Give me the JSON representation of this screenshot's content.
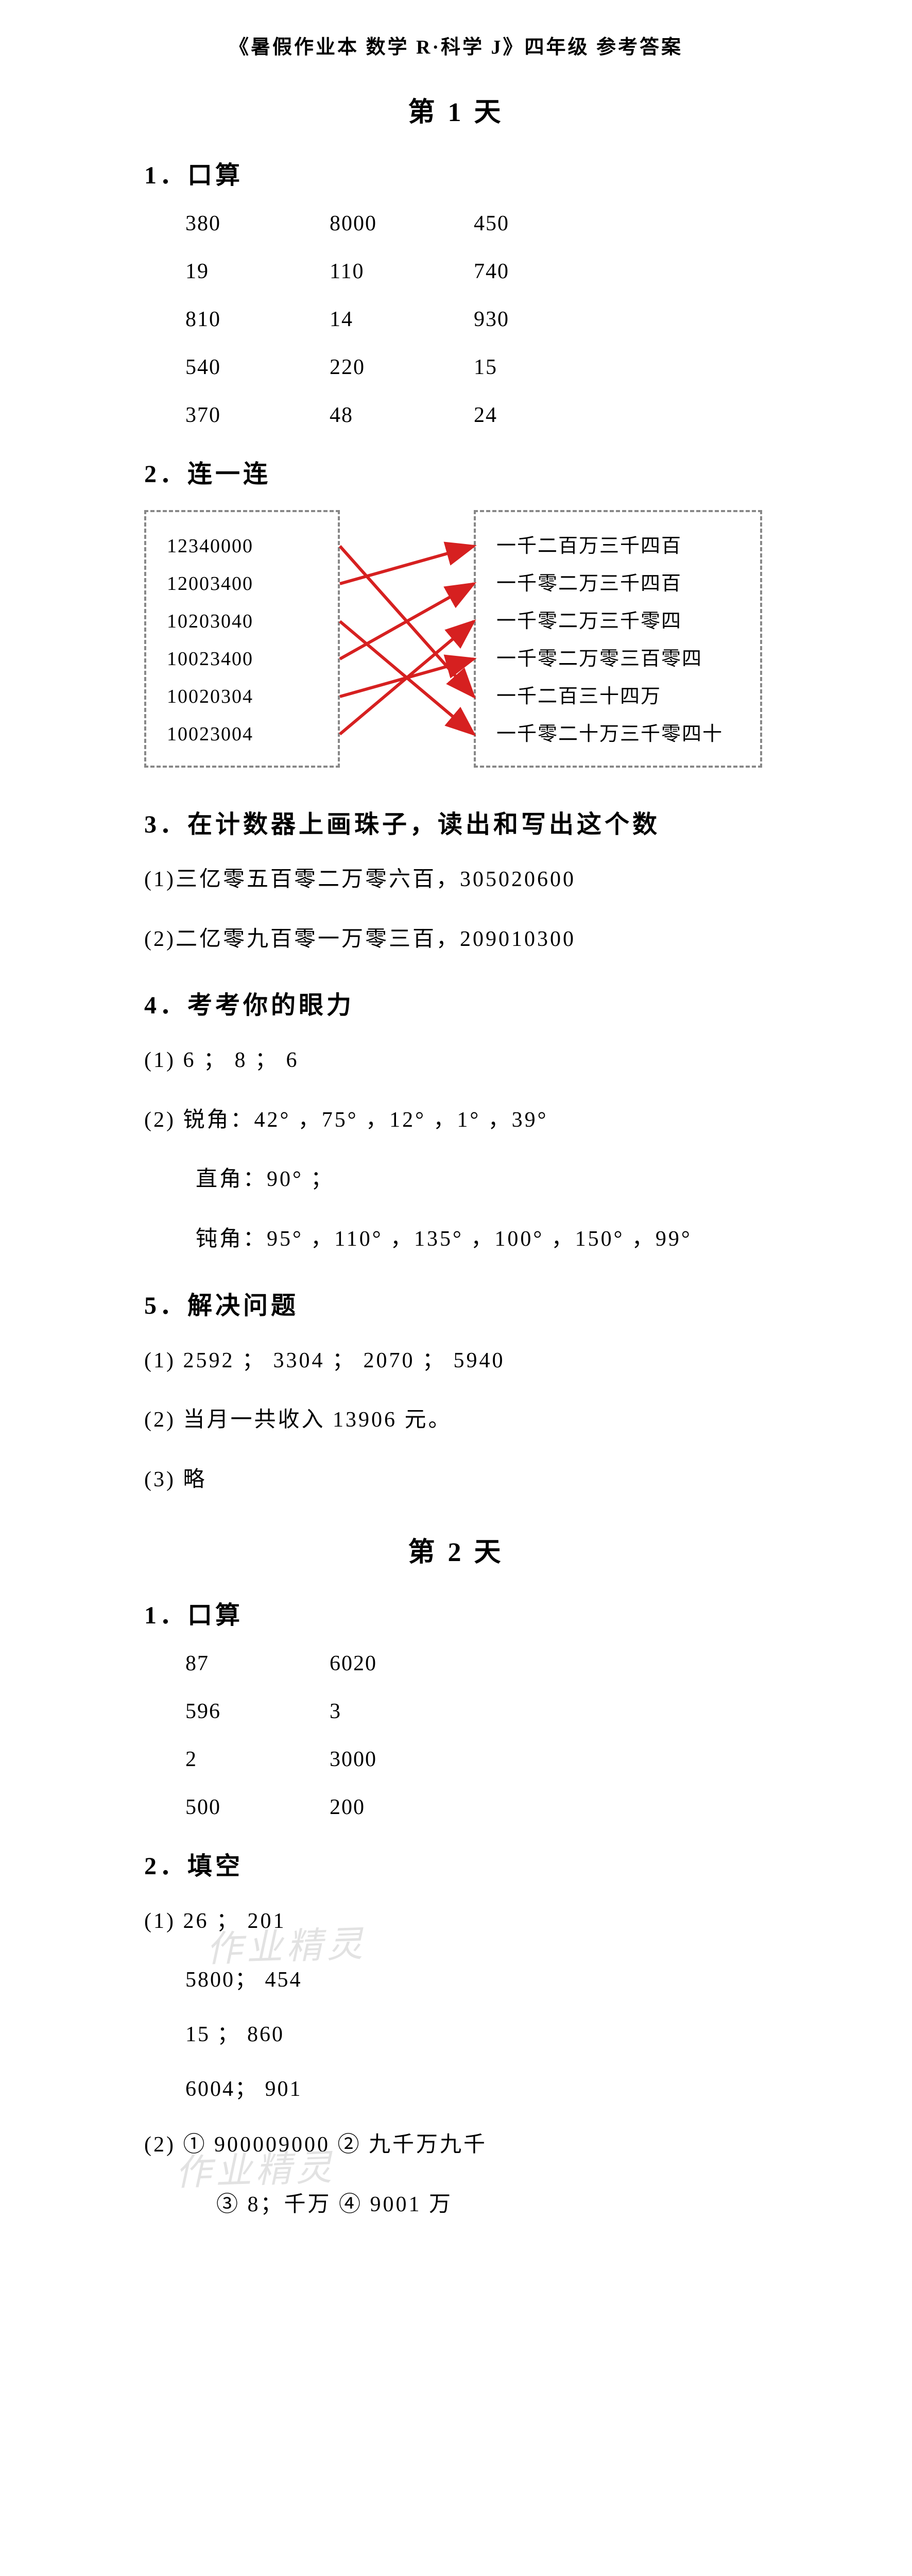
{
  "header": "《暑假作业本  数学 R·科学 J》四年级  参考答案",
  "day1": {
    "title": "第 1 天",
    "s1": {
      "title": "1．口算",
      "rows": [
        [
          "380",
          "8000",
          "450"
        ],
        [
          "19",
          "110",
          "740"
        ],
        [
          "810",
          "14",
          "930"
        ],
        [
          "540",
          "220",
          "15"
        ],
        [
          "370",
          "48",
          "24"
        ]
      ]
    },
    "s2": {
      "title": "2．连一连",
      "left": [
        "12340000",
        "12003400",
        "10203040",
        "10023400",
        "10020304",
        "10023004"
      ],
      "right": [
        "一千二百万三千四百",
        "一千零二万三千四百",
        "一千零二万三千零四",
        "一千零二万零三百零四",
        "一千二百三十四万",
        "一千零二十万三千零四十"
      ],
      "line_color": "#d62020",
      "border_color": "#888888",
      "connections": [
        [
          0,
          4
        ],
        [
          1,
          0
        ],
        [
          2,
          5
        ],
        [
          3,
          1
        ],
        [
          4,
          3
        ],
        [
          5,
          2
        ]
      ]
    },
    "s3": {
      "title": "3．在计数器上画珠子，读出和写出这个数",
      "l1": "(1)三亿零五百零二万零六百，305020600",
      "l2": "(2)二亿零九百零一万零三百，209010300"
    },
    "s4": {
      "title": "4．考考你的眼力",
      "l1": "(1) 6  ；  8  ；  6",
      "l2": "(2) 锐角：42° ，75° ，12° ，1° ，39°",
      "l3": "直角：90° ；",
      "l4": "钝角：95° ，110° ，135° ，100° ，150° ，99°"
    },
    "s5": {
      "title": "5．解决问题",
      "l1": "(1) 2592  ；   3304  ；   2070  ；   5940",
      "l2": "(2)  当月一共收入 13906 元。",
      "l3": "(3)  略"
    }
  },
  "day2": {
    "title": "第 2 天",
    "s1": {
      "title": "1．口算",
      "rows": [
        [
          "87",
          "6020"
        ],
        [
          "596",
          "3"
        ],
        [
          "2",
          "3000"
        ],
        [
          "500",
          "200"
        ]
      ]
    },
    "s2": {
      "title": "2．填空",
      "p1": {
        "label": "(1) 26  ；   201",
        "r2": "5800；   454",
        "r3": "15   ；   860",
        "r4": "6004；   901"
      },
      "p2": {
        "l1": "(2)  ① 900009000     ② 九千万九千",
        "l2": "③ 8；千万      ④ 9001 万"
      }
    }
  },
  "watermarks": {
    "w1": "作业精灵",
    "w2": "作业精灵"
  }
}
